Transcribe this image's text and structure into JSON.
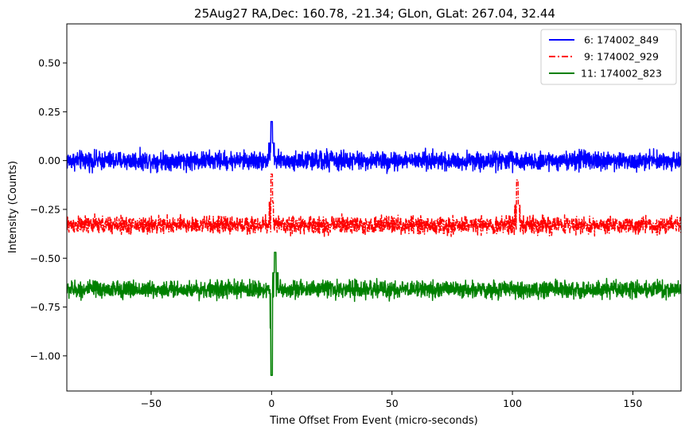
{
  "chart_data": {
    "type": "line",
    "title": "25Aug27 RA,Dec:  160.78, -21.34; GLon, GLat:  267.04,  32.44",
    "xlabel": "Time Offset From Event (micro-seconds)",
    "ylabel": "Intensity (Counts)",
    "xlim": [
      -85,
      170
    ],
    "ylim": [
      -1.18,
      0.7
    ],
    "xticks": [
      -50,
      0,
      50,
      100,
      150
    ],
    "xtick_labels": [
      "−50",
      "0",
      "50",
      "100",
      "150"
    ],
    "yticks": [
      0.5,
      0.25,
      0.0,
      -0.25,
      -0.5,
      -0.75,
      -1.0
    ],
    "ytick_labels": [
      "0.50",
      "0.25",
      "0.00",
      "−0.25",
      "−0.50",
      "−0.75",
      "−1.00"
    ],
    "grid": false,
    "legend_position": "top-right",
    "series": [
      {
        "name": " 6: 174002_849",
        "color": "#0000ff",
        "linestyle": "solid",
        "baseline": 0.0,
        "noise_amplitude": 0.07,
        "features": [
          {
            "x": 0.0,
            "y": 0.2
          }
        ]
      },
      {
        "name": " 9: 174002_929",
        "color": "#ff0000",
        "linestyle": "dashdot",
        "baseline": -0.33,
        "noise_amplitude": 0.065,
        "features": [
          {
            "x": 0.0,
            "y": -0.07
          },
          {
            "x": 102.0,
            "y": -0.1
          }
        ]
      },
      {
        "name": "11: 174002_823",
        "color": "#008000",
        "linestyle": "solid",
        "baseline": -0.66,
        "noise_amplitude": 0.065,
        "features": [
          {
            "x": 0.0,
            "y": -1.1
          },
          {
            "x": 1.5,
            "y": -0.47
          }
        ]
      }
    ]
  }
}
